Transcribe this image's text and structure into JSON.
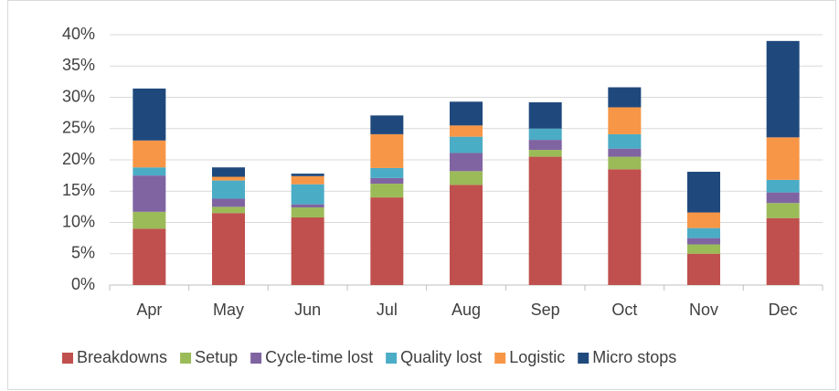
{
  "chart_data": {
    "type": "stacked-bar",
    "categories": [
      "Apr",
      "May",
      "Jun",
      "Jul",
      "Aug",
      "Sep",
      "Oct",
      "Nov",
      "Dec"
    ],
    "series": [
      {
        "name": "Breakdowns",
        "color": "#c0504d",
        "values": [
          9,
          11.5,
          10.8,
          14,
          16,
          20.5,
          18.5,
          5,
          10.7
        ]
      },
      {
        "name": "Setup",
        "color": "#9bbb59",
        "values": [
          2.7,
          1,
          1.6,
          2.2,
          2.2,
          1.1,
          2,
          1.5,
          2.4
        ]
      },
      {
        "name": "Cycle-time lost",
        "color": "#8064a2",
        "values": [
          5.8,
          1.3,
          0.5,
          0.9,
          2.9,
          1.6,
          1.3,
          1,
          1.7
        ]
      },
      {
        "name": "Quality lost",
        "color": "#4bacc6",
        "values": [
          1.3,
          2.9,
          3.2,
          1.6,
          2.6,
          1.8,
          2.3,
          1.6,
          2
        ]
      },
      {
        "name": "Logistic",
        "color": "#f79646",
        "values": [
          4.3,
          0.6,
          1.3,
          5.4,
          1.8,
          0,
          4.3,
          2.5,
          6.8
        ]
      },
      {
        "name": "Micro stops",
        "color": "#1f497d",
        "values": [
          8.3,
          1.5,
          0.4,
          3,
          3.8,
          4.2,
          3.2,
          6.5,
          15.4
        ]
      }
    ],
    "ylim": [
      0,
      40
    ],
    "yticks": [
      {
        "value": 0,
        "label": "0%"
      },
      {
        "value": 5,
        "label": "5%"
      },
      {
        "value": 10,
        "label": "10%"
      },
      {
        "value": 15,
        "label": "15%"
      },
      {
        "value": 20,
        "label": "20%"
      },
      {
        "value": 25,
        "label": "25%"
      },
      {
        "value": 30,
        "label": "30%"
      },
      {
        "value": 35,
        "label": "35%"
      },
      {
        "value": 40,
        "label": "40%"
      }
    ],
    "grid": true,
    "legend": "bottom"
  }
}
